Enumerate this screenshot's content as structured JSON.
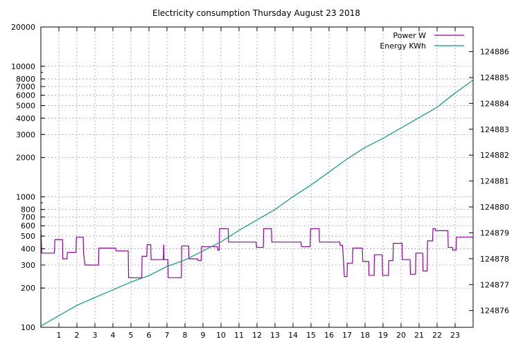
{
  "chart_data": {
    "type": "line",
    "title": "Electricity consumption Thursday August 23 2018",
    "xlabel": "",
    "ylabel": "",
    "xlim": [
      0,
      24
    ],
    "ylim": [
      100,
      20000
    ],
    "yscale": "log",
    "y2lim": [
      124875.35,
      124886.95
    ],
    "grid": true,
    "legend_position": "top-right",
    "x_ticks": [
      1,
      2,
      3,
      4,
      5,
      6,
      7,
      8,
      9,
      10,
      11,
      12,
      13,
      14,
      15,
      16,
      17,
      18,
      19,
      20,
      21,
      22,
      23
    ],
    "y_ticks": [
      100,
      200,
      300,
      400,
      500,
      600,
      700,
      800,
      1000,
      2000,
      3000,
      4000,
      5000,
      6000,
      7000,
      8000,
      10000,
      20000
    ],
    "y2_ticks": [
      124876,
      124877,
      124878,
      124879,
      124880,
      124881,
      124882,
      124883,
      124884,
      124885,
      124886
    ],
    "series": [
      {
        "name": "Power W",
        "color": "#94009f",
        "axis": "y",
        "points": [
          [
            0,
            560
          ],
          [
            0.05,
            370
          ],
          [
            0.75,
            370
          ],
          [
            0.78,
            470
          ],
          [
            1.2,
            470
          ],
          [
            1.22,
            335
          ],
          [
            1.45,
            335
          ],
          [
            1.47,
            375
          ],
          [
            1.95,
            375
          ],
          [
            1.97,
            490
          ],
          [
            2.35,
            490
          ],
          [
            2.37,
            370
          ],
          [
            2.45,
            300
          ],
          [
            3.2,
            300
          ],
          [
            3.22,
            405
          ],
          [
            4.15,
            405
          ],
          [
            4.17,
            385
          ],
          [
            4.85,
            385
          ],
          [
            4.87,
            240
          ],
          [
            5.6,
            240
          ],
          [
            5.62,
            350
          ],
          [
            5.88,
            350
          ],
          [
            5.9,
            430
          ],
          [
            6.1,
            430
          ],
          [
            6.12,
            330
          ],
          [
            6.8,
            330
          ],
          [
            6.82,
            430
          ],
          [
            6.84,
            330
          ],
          [
            7.05,
            330
          ],
          [
            7.07,
            240
          ],
          [
            7.8,
            240
          ],
          [
            7.82,
            420
          ],
          [
            8.2,
            420
          ],
          [
            8.22,
            335
          ],
          [
            8.7,
            335
          ],
          [
            8.72,
            325
          ],
          [
            8.9,
            325
          ],
          [
            8.92,
            415
          ],
          [
            9.8,
            415
          ],
          [
            9.82,
            390
          ],
          [
            9.9,
            390
          ],
          [
            9.92,
            570
          ],
          [
            10.4,
            570
          ],
          [
            10.42,
            450
          ],
          [
            11.95,
            450
          ],
          [
            11.97,
            410
          ],
          [
            12.35,
            410
          ],
          [
            12.37,
            570
          ],
          [
            12.8,
            570
          ],
          [
            12.82,
            450
          ],
          [
            14.45,
            450
          ],
          [
            14.47,
            415
          ],
          [
            14.95,
            415
          ],
          [
            14.97,
            570
          ],
          [
            15.45,
            570
          ],
          [
            15.47,
            450
          ],
          [
            16.6,
            450
          ],
          [
            16.62,
            425
          ],
          [
            16.75,
            425
          ],
          [
            16.85,
            245
          ],
          [
            17.0,
            245
          ],
          [
            17.02,
            310
          ],
          [
            17.3,
            310
          ],
          [
            17.32,
            405
          ],
          [
            17.85,
            405
          ],
          [
            17.87,
            320
          ],
          [
            18.2,
            320
          ],
          [
            18.22,
            250
          ],
          [
            18.5,
            250
          ],
          [
            18.52,
            360
          ],
          [
            18.95,
            360
          ],
          [
            18.97,
            250
          ],
          [
            19.3,
            250
          ],
          [
            19.32,
            325
          ],
          [
            19.55,
            325
          ],
          [
            19.57,
            440
          ],
          [
            20.05,
            440
          ],
          [
            20.07,
            330
          ],
          [
            20.5,
            330
          ],
          [
            20.52,
            255
          ],
          [
            20.8,
            255
          ],
          [
            20.82,
            370
          ],
          [
            21.2,
            370
          ],
          [
            21.22,
            270
          ],
          [
            21.45,
            270
          ],
          [
            21.47,
            460
          ],
          [
            21.75,
            460
          ],
          [
            21.77,
            570
          ],
          [
            21.9,
            570
          ],
          [
            21.92,
            550
          ],
          [
            22.6,
            550
          ],
          [
            22.62,
            410
          ],
          [
            22.85,
            410
          ],
          [
            22.87,
            390
          ],
          [
            23.05,
            390
          ],
          [
            23.07,
            490
          ],
          [
            24,
            490
          ]
        ]
      },
      {
        "name": "Energy KWh",
        "color": "#009e73",
        "axis": "y2",
        "points": [
          [
            0,
            124875.4
          ],
          [
            1,
            124875.8
          ],
          [
            2,
            124876.2
          ],
          [
            3,
            124876.5
          ],
          [
            4,
            124876.8
          ],
          [
            5,
            124877.1
          ],
          [
            6,
            124877.35
          ],
          [
            7,
            124877.7
          ],
          [
            8,
            124877.95
          ],
          [
            9,
            124878.3
          ],
          [
            10,
            124878.65
          ],
          [
            11,
            124879.1
          ],
          [
            12,
            124879.5
          ],
          [
            13,
            124879.9
          ],
          [
            14,
            124880.4
          ],
          [
            15,
            124880.85
          ],
          [
            16,
            124881.35
          ],
          [
            17,
            124881.85
          ],
          [
            18,
            124882.3
          ],
          [
            19,
            124882.65
          ],
          [
            20,
            124883.05
          ],
          [
            21,
            124883.45
          ],
          [
            22,
            124883.85
          ],
          [
            23,
            124884.4
          ],
          [
            24,
            124884.9
          ]
        ]
      }
    ]
  }
}
